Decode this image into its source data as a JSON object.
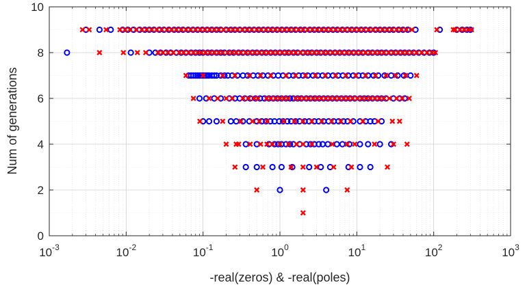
{
  "chart_data": {
    "type": "scatter",
    "xscale": "log",
    "xlabel": "-real(zeros) & -real(poles)",
    "ylabel": "Num of generations",
    "xlim": [
      0.001,
      1000
    ],
    "ylim": [
      0,
      10
    ],
    "grid": true,
    "minor_grid": true,
    "x_ticks": [
      {
        "base": "10",
        "exp": "-3",
        "value": 0.001
      },
      {
        "base": "10",
        "exp": "-2",
        "value": 0.01
      },
      {
        "base": "10",
        "exp": "-1",
        "value": 0.1
      },
      {
        "base": "10",
        "exp": "0",
        "value": 1
      },
      {
        "base": "10",
        "exp": "1",
        "value": 10
      },
      {
        "base": "10",
        "exp": "2",
        "value": 100
      },
      {
        "base": "10",
        "exp": "3",
        "value": 1000
      }
    ],
    "y_ticks": [
      {
        "label": "0",
        "value": 0
      },
      {
        "label": "2",
        "value": 2
      },
      {
        "label": "4",
        "value": 4
      },
      {
        "label": "6",
        "value": 6
      },
      {
        "label": "8",
        "value": 8
      },
      {
        "label": "10",
        "value": 10
      }
    ],
    "series": [
      {
        "marker": "circle",
        "color": "#0000ff",
        "points": [
          {
            "y": 2,
            "x": [
              1.0,
              4.0
            ]
          },
          {
            "y": 3,
            "x": [
              0.36,
              0.5,
              0.8,
              1.05,
              1.45,
              2.4,
              3.4,
              4.5,
              7.8,
              11,
              15
            ]
          },
          {
            "y": 4,
            "x": [
              0.36,
              0.5,
              0.72,
              0.85,
              0.95,
              1.05,
              1.2,
              1.35,
              1.5,
              1.8,
              2.2,
              2.5,
              2.8,
              3.2,
              3.6,
              4.2,
              5.5,
              6.5,
              8.0,
              11,
              14,
              20,
              28
            ]
          },
          {
            "y": 5,
            "x": [
              0.1,
              0.12,
              0.15,
              0.23,
              0.27,
              0.33,
              0.4,
              0.5,
              0.58,
              0.66,
              0.75,
              0.85,
              0.98,
              1.1,
              1.25,
              1.4,
              1.6,
              1.8,
              2.1,
              2.4,
              2.8,
              3.2,
              3.7,
              4.3,
              5.0,
              5.8,
              6.7,
              7.6,
              9.0,
              11,
              13,
              15,
              17,
              21
            ]
          },
          {
            "y": 6,
            "x": [
              0.09,
              0.11,
              0.14,
              0.17,
              0.22,
              0.26,
              0.3,
              0.35,
              0.41,
              0.48,
              0.55,
              0.63,
              0.72,
              0.82,
              0.93,
              1.05,
              1.2,
              1.35,
              1.5,
              1.7,
              1.9,
              2.2,
              2.5,
              2.85,
              3.25,
              3.7,
              4.2,
              4.8,
              5.5,
              6.3,
              7.2,
              8.2,
              9.4,
              11,
              12.5,
              14,
              16,
              18.5,
              21,
              24,
              30,
              36,
              42
            ]
          },
          {
            "y": 7,
            "x": [
              0.065,
              0.07,
              0.075,
              0.08,
              0.085,
              0.09,
              0.095,
              0.1,
              0.105,
              0.11,
              0.115,
              0.12,
              0.13,
              0.14,
              0.15,
              0.17,
              0.19,
              0.21,
              0.24,
              0.28,
              0.33,
              0.38,
              0.45,
              0.52,
              0.6,
              0.7,
              0.82,
              0.95,
              1.1,
              1.3,
              1.5,
              1.75,
              2.0,
              2.3,
              2.7,
              3.1,
              3.6,
              4.2,
              4.9,
              5.7,
              6.6,
              7.7,
              9.0,
              10.5,
              12,
              14,
              16.5,
              19,
              23,
              28,
              34,
              41,
              50
            ]
          },
          {
            "y": 8,
            "x": [
              0.0017,
              0.0115,
              0.02,
              0.024,
              0.028,
              0.033,
              0.038,
              0.045,
              0.052,
              0.06,
              0.07,
              0.08,
              0.09,
              0.1,
              0.115,
              0.13,
              0.15,
              0.17,
              0.19,
              0.22,
              0.25,
              0.29,
              0.33,
              0.38,
              0.44,
              0.5,
              0.58,
              0.66,
              0.76,
              0.87,
              1.0,
              1.15,
              1.3,
              1.5,
              1.7,
              2.0,
              2.3,
              2.6,
              3.0,
              3.4,
              3.9,
              4.5,
              5.2,
              6.0,
              6.9,
              7.9,
              9.1,
              10.5,
              12,
              14,
              16,
              18.5,
              21,
              24,
              28,
              32,
              37,
              42,
              48,
              55,
              64,
              75,
              88,
              100
            ]
          },
          {
            "y": 9,
            "x": [
              0.003,
              0.0045,
              0.0063,
              0.009,
              0.0105,
              0.0125,
              0.015,
              0.0175,
              0.02,
              0.023,
              0.027,
              0.031,
              0.036,
              0.042,
              0.048,
              0.055,
              0.064,
              0.074,
              0.085,
              0.098,
              0.113,
              0.13,
              0.15,
              0.17,
              0.2,
              0.23,
              0.26,
              0.3,
              0.35,
              0.4,
              0.46,
              0.53,
              0.61,
              0.7,
              0.8,
              0.92,
              1.06,
              1.22,
              1.4,
              1.6,
              1.85,
              2.1,
              2.45,
              2.8,
              3.2,
              3.7,
              4.25,
              4.9,
              5.6,
              6.5,
              7.5,
              8.6,
              9.9,
              11.4,
              13,
              15,
              17.5,
              20,
              23,
              26.5,
              30,
              35,
              40,
              46,
              58,
              120,
              200,
              235,
              270,
              300
            ]
          }
        ]
      },
      {
        "marker": "x",
        "color": "#ff0000",
        "points": [
          {
            "y": 1,
            "x": [
              2.0
            ]
          },
          {
            "y": 2,
            "x": [
              0.5,
              2.0,
              7.5
            ]
          },
          {
            "y": 3,
            "x": [
              0.26,
              0.6,
              1.4,
              2.0,
              3.0,
              5.0,
              8.5,
              25
            ]
          },
          {
            "y": 4,
            "x": [
              0.2,
              0.27,
              0.29,
              0.41,
              0.56,
              0.68,
              0.8,
              1.0,
              1.3,
              1.65,
              2.0,
              2.6,
              4.8,
              7.5,
              9.4,
              17,
              30,
              45
            ]
          },
          {
            "y": 5,
            "x": [
              0.091,
              0.18,
              0.31,
              0.44,
              0.54,
              0.68,
              1.12,
              1.55,
              2.0,
              2.6,
              3.5,
              4.7,
              6.2,
              8.3,
              12,
              19,
              29,
              36
            ]
          },
          {
            "y": 6,
            "x": [
              0.075,
              0.12,
              0.155,
              0.2,
              0.24,
              0.33,
              0.39,
              0.46,
              0.52,
              0.67,
              0.76,
              0.88,
              1.0,
              1.13,
              1.28,
              1.6,
              1.8,
              2.05,
              2.35,
              2.7,
              3.05,
              3.45,
              3.95,
              4.5,
              5.15,
              5.9,
              6.75,
              7.7,
              8.8,
              10.2,
              11.7,
              13.3,
              15,
              17.2,
              19.7,
              22.5,
              26.5,
              33,
              39,
              48
            ]
          },
          {
            "y": 7,
            "x": [
              0.06,
              0.1,
              0.18,
              0.26,
              0.4,
              0.56,
              0.76,
              1.2,
              1.6,
              2.15,
              2.9,
              3.9,
              5.3,
              7.2,
              9.7,
              13,
              17.5,
              24,
              32,
              43,
              60
            ]
          },
          {
            "y": 8,
            "x": [
              0.0045,
              0.0092,
              0.014,
              0.018,
              0.026,
              0.03,
              0.035,
              0.041,
              0.049,
              0.056,
              0.065,
              0.075,
              0.086,
              0.095,
              0.108,
              0.123,
              0.14,
              0.16,
              0.18,
              0.21,
              0.24,
              0.27,
              0.31,
              0.36,
              0.41,
              0.47,
              0.54,
              0.62,
              0.71,
              0.81,
              0.93,
              1.07,
              1.23,
              1.4,
              1.6,
              1.85,
              2.15,
              2.45,
              2.8,
              3.2,
              3.7,
              4.2,
              4.85,
              5.6,
              6.4,
              7.4,
              8.5,
              9.8,
              11.3,
              13,
              15,
              17.3,
              19.7,
              22.5,
              26,
              30,
              34.5,
              39.5,
              45,
              52,
              60,
              70,
              82,
              95,
              105
            ]
          },
          {
            "y": 9,
            "x": [
              0.0027,
              0.0033,
              0.0055,
              0.0083,
              0.0097,
              0.0112,
              0.0135,
              0.016,
              0.0185,
              0.0215,
              0.025,
              0.029,
              0.034,
              0.039,
              0.045,
              0.052,
              0.06,
              0.069,
              0.08,
              0.092,
              0.106,
              0.122,
              0.14,
              0.16,
              0.185,
              0.215,
              0.245,
              0.28,
              0.325,
              0.375,
              0.43,
              0.5,
              0.57,
              0.66,
              0.76,
              0.87,
              1.0,
              1.15,
              1.32,
              1.52,
              1.75,
              2.0,
              2.3,
              2.65,
              3.05,
              3.5,
              4.0,
              4.6,
              5.3,
              6.1,
              7.0,
              8.1,
              9.3,
              10.7,
              12.3,
              14.2,
              16.3,
              18.8,
              21.6,
              24.8,
              28.5,
              33,
              38,
              44,
              52,
              110,
              180,
              190,
              220,
              250,
              280,
              310
            ]
          }
        ]
      }
    ]
  }
}
